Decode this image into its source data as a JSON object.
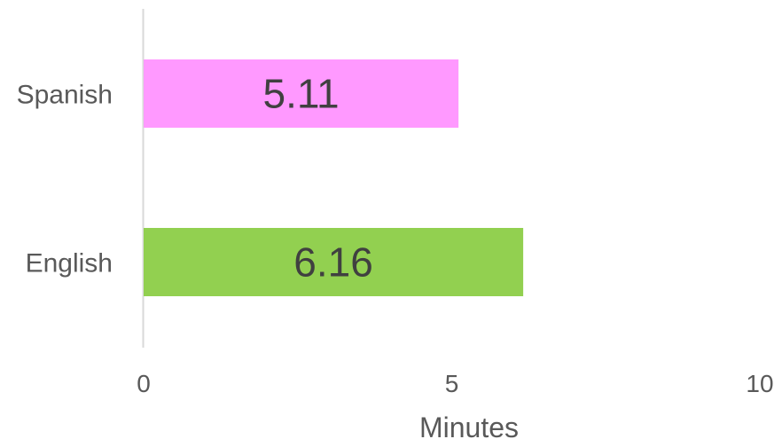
{
  "chart_data": {
    "type": "bar",
    "orientation": "horizontal",
    "categories": [
      "Spanish",
      "English"
    ],
    "values": [
      5.11,
      6.16
    ],
    "data_labels": [
      "5.11",
      "6.16"
    ],
    "bar_colors": [
      "#FF99FF",
      "#92D050"
    ],
    "xlabel": "Minutes",
    "xlim": [
      0,
      10
    ],
    "x_ticks": [
      "0",
      "5",
      "10"
    ],
    "gridlines": false,
    "legend": "none"
  }
}
